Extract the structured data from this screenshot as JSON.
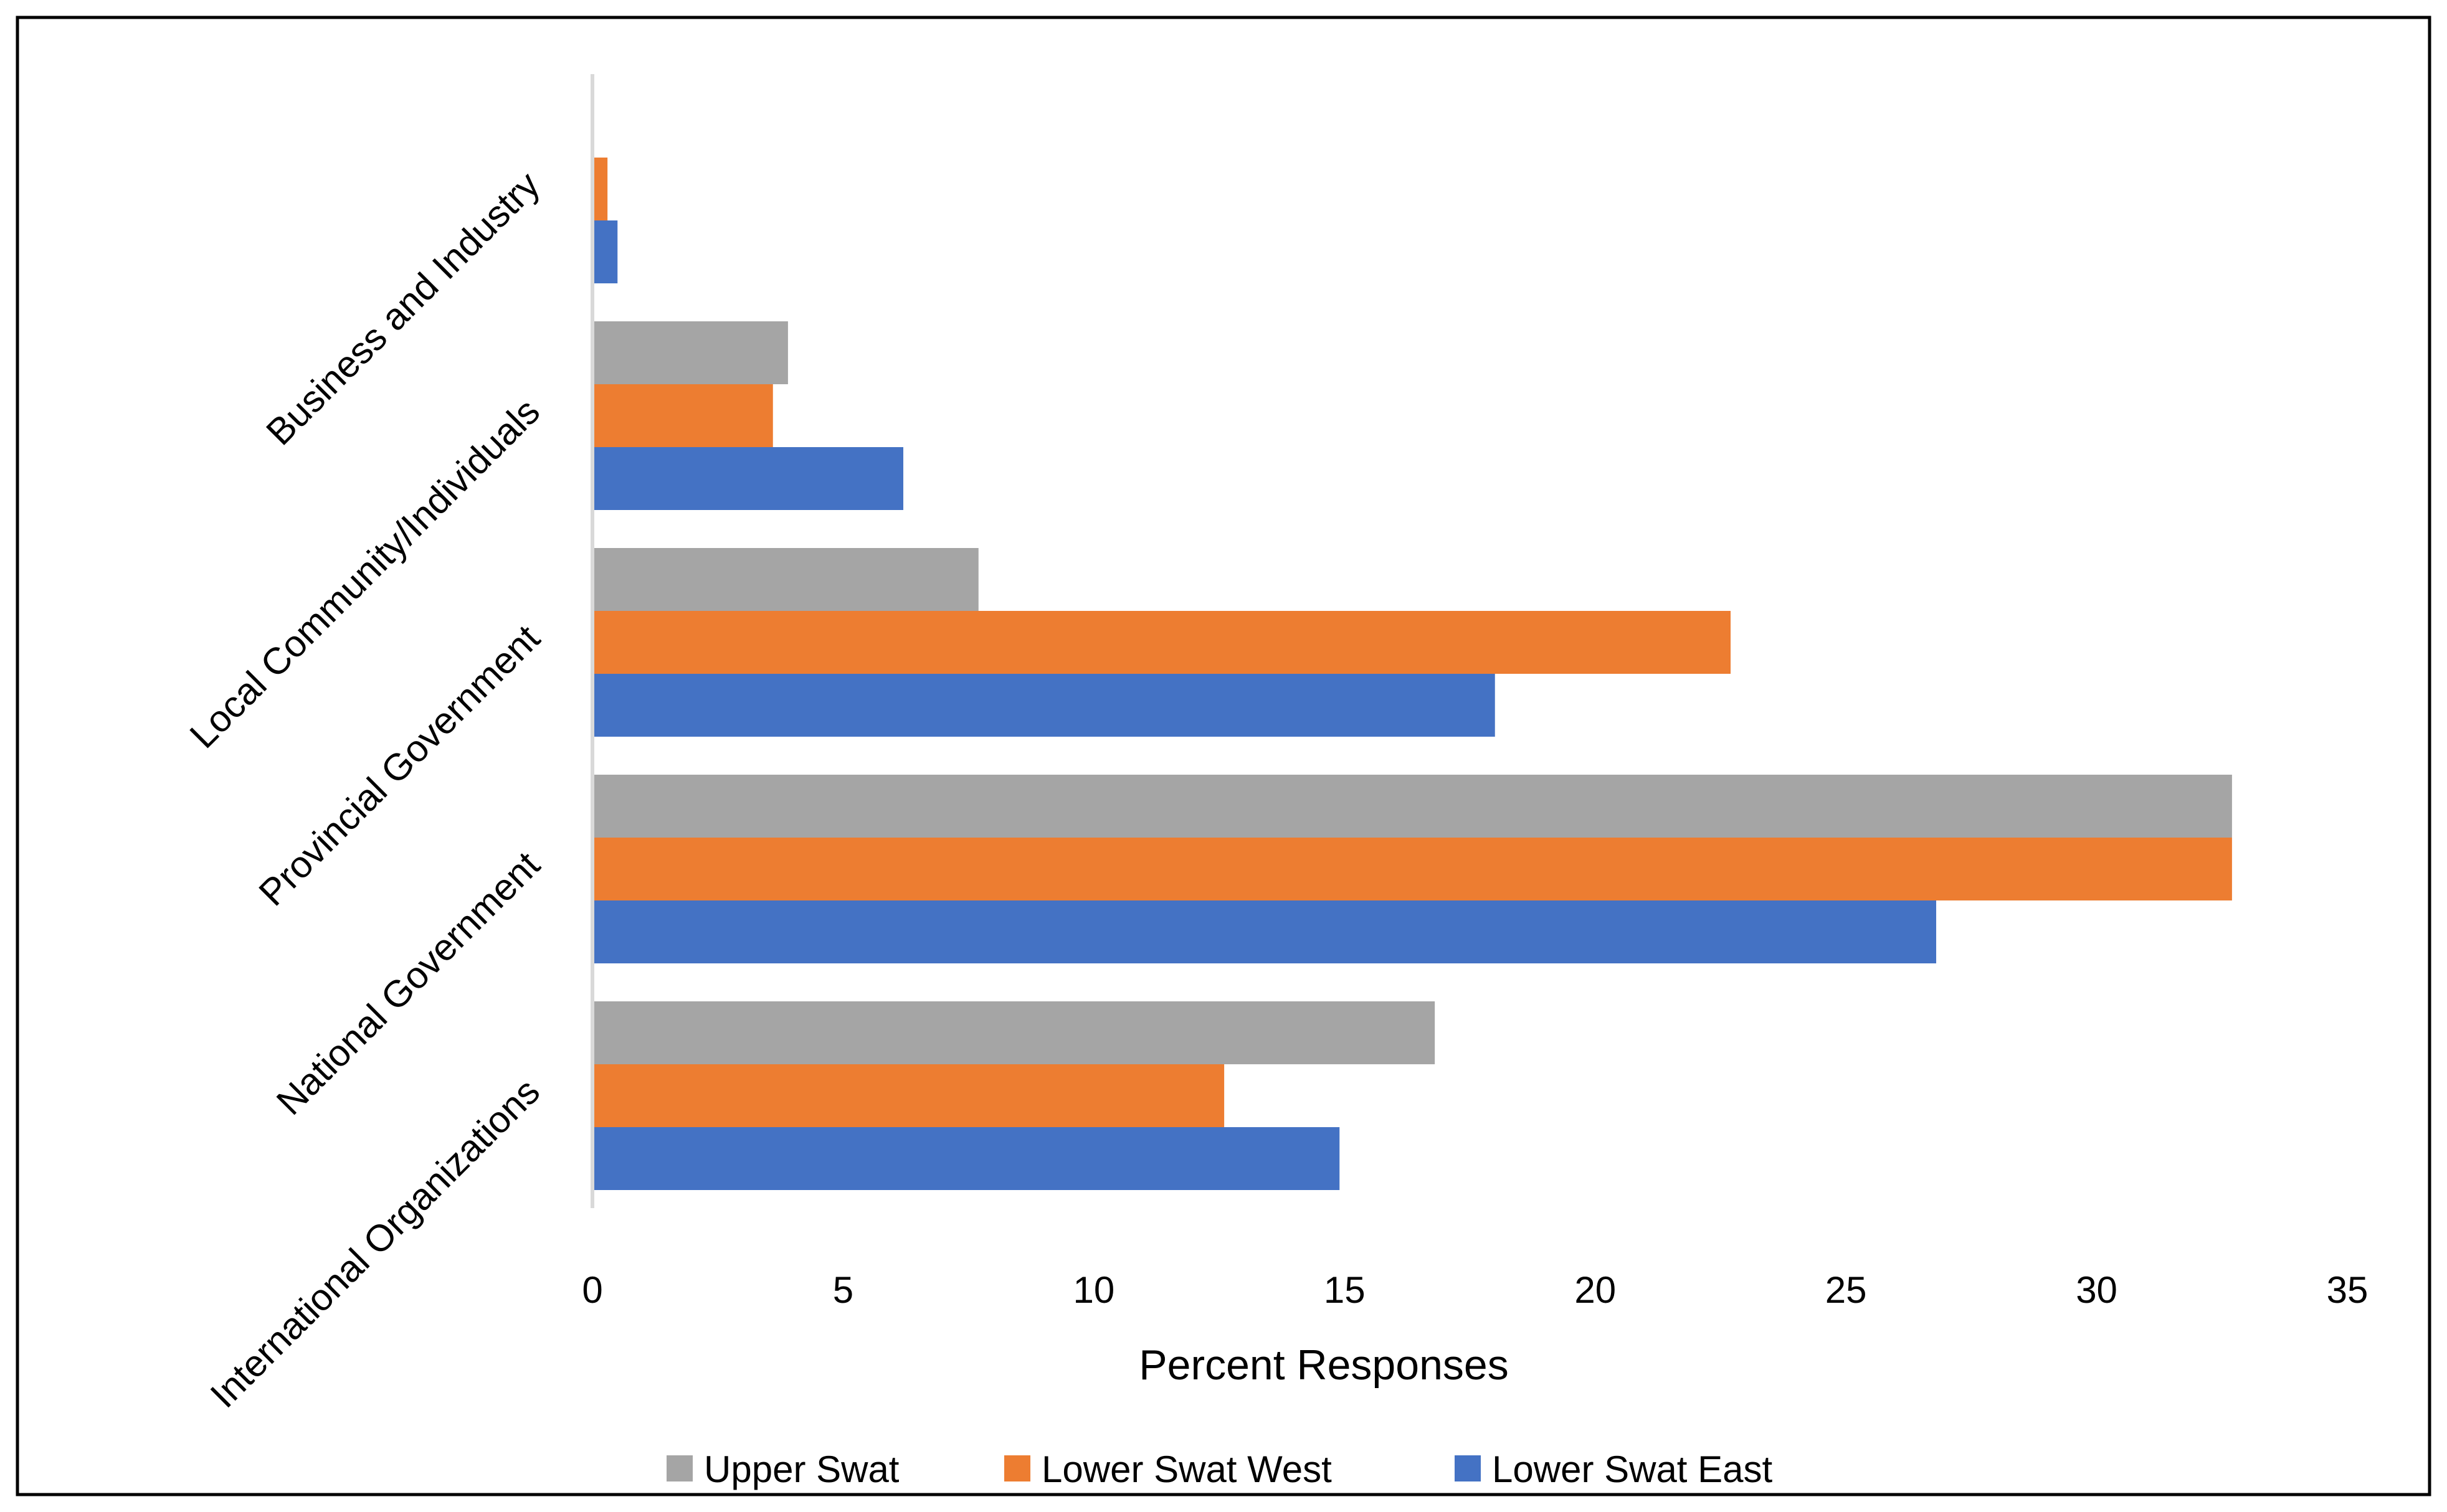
{
  "chart_data": {
    "type": "bar",
    "orientation": "horizontal",
    "title": "",
    "xlabel": "Percent Responses",
    "ylabel": "",
    "xlim": [
      0,
      35
    ],
    "xticks": [
      "0",
      "5",
      "10",
      "15",
      "20",
      "25",
      "30",
      "35"
    ],
    "grid": false,
    "legend_position": "bottom",
    "categories": [
      "Business and Industry",
      "Local Community/Individuals",
      "Provincial Government",
      "National Government",
      "International Organizations"
    ],
    "series": [
      {
        "name": "Upper Swat",
        "color": "#A5A5A5",
        "values": [
          0,
          3.9,
          7.7,
          32.7,
          16.8
        ]
      },
      {
        "name": "Lower Swat West",
        "color": "#ED7D31",
        "values": [
          0.3,
          3.6,
          22.7,
          32.7,
          12.6
        ]
      },
      {
        "name": "Lower Swat East",
        "color": "#4472C4",
        "values": [
          0.5,
          6.2,
          18.0,
          26.8,
          14.9
        ]
      }
    ]
  }
}
